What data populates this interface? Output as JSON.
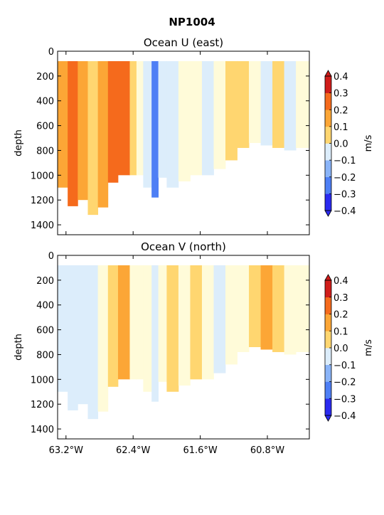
{
  "figure_title": "NP1004",
  "chart_data": [
    {
      "type": "heatmap",
      "title": "Ocean U (east)",
      "xlabel": "",
      "ylabel": "depth",
      "x_ticks": [
        "63.2°W",
        "62.4°W",
        "61.6°W",
        "60.8°W"
      ],
      "x_tick_values": [
        -63.2,
        -62.4,
        -61.6,
        -60.8
      ],
      "xlim": [
        -63.3,
        -60.3
      ],
      "y_ticks": [
        "0",
        "200",
        "400",
        "600",
        "800",
        "1000",
        "1200",
        "1400"
      ],
      "y_tick_values": [
        0,
        200,
        400,
        600,
        800,
        1000,
        1200,
        1400
      ],
      "ylim": [
        1480,
        0
      ],
      "colorbar": {
        "label": "m/s",
        "ticks": [
          "0.4",
          "0.3",
          "0.2",
          "0.1",
          "0.0",
          "−0.1",
          "−0.2",
          "−0.3",
          "−0.4"
        ],
        "levels": [
          -0.4,
          -0.3,
          -0.2,
          -0.1,
          0.0,
          0.1,
          0.2,
          0.3,
          0.4
        ],
        "colors": [
          "#2a2af0",
          "#4e7ff5",
          "#8ab4f8",
          "#dcedfb",
          "#fffbd9",
          "#ffd670",
          "#fca636",
          "#f56a1c",
          "#d01d1a"
        ]
      },
      "columns": [
        {
          "x0": -63.3,
          "x1": -63.18,
          "bottom": 1100,
          "value": 0.28
        },
        {
          "x0": -63.18,
          "x1": -63.06,
          "bottom": 1250,
          "value": 0.34
        },
        {
          "x0": -63.06,
          "x1": -62.94,
          "bottom": 1200,
          "value": 0.25
        },
        {
          "x0": -62.94,
          "x1": -62.82,
          "bottom": 1320,
          "value": 0.18
        },
        {
          "x0": -62.82,
          "x1": -62.7,
          "bottom": 1260,
          "value": 0.22
        },
        {
          "x0": -62.7,
          "x1": -62.58,
          "bottom": 1060,
          "value": 0.34
        },
        {
          "x0": -62.58,
          "x1": -62.44,
          "bottom": 1000,
          "value": 0.36
        },
        {
          "x0": -62.44,
          "x1": -62.36,
          "bottom": 1000,
          "value": 0.15
        },
        {
          "x0": -62.36,
          "x1": -62.28,
          "bottom": 1000,
          "value": 0.05
        },
        {
          "x0": -62.28,
          "x1": -62.18,
          "bottom": 1100,
          "value": -0.08
        },
        {
          "x0": -62.18,
          "x1": -62.1,
          "bottom": 1180,
          "value": -0.24
        },
        {
          "x0": -62.1,
          "x1": -62.0,
          "bottom": 1020,
          "value": -0.05
        },
        {
          "x0": -62.0,
          "x1": -61.86,
          "bottom": 1100,
          "value": -0.05
        },
        {
          "x0": -61.86,
          "x1": -61.72,
          "bottom": 1050,
          "value": 0.04
        },
        {
          "x0": -61.72,
          "x1": -61.58,
          "bottom": 1000,
          "value": 0.03
        },
        {
          "x0": -61.58,
          "x1": -61.44,
          "bottom": 1000,
          "value": -0.06
        },
        {
          "x0": -61.44,
          "x1": -61.3,
          "bottom": 950,
          "value": 0.04
        },
        {
          "x0": -61.3,
          "x1": -61.16,
          "bottom": 880,
          "value": 0.14
        },
        {
          "x0": -61.16,
          "x1": -61.02,
          "bottom": 780,
          "value": 0.12
        },
        {
          "x0": -61.02,
          "x1": -60.88,
          "bottom": 740,
          "value": 0.04
        },
        {
          "x0": -60.88,
          "x1": -60.74,
          "bottom": 760,
          "value": -0.03
        },
        {
          "x0": -60.74,
          "x1": -60.6,
          "bottom": 780,
          "value": 0.13
        },
        {
          "x0": -60.6,
          "x1": -60.46,
          "bottom": 800,
          "value": -0.07
        },
        {
          "x0": -60.46,
          "x1": -60.3,
          "bottom": 780,
          "value": 0.03
        }
      ]
    },
    {
      "type": "heatmap",
      "title": "Ocean V (north)",
      "xlabel": "",
      "ylabel": "depth",
      "x_ticks": [
        "63.2°W",
        "62.4°W",
        "61.6°W",
        "60.8°W"
      ],
      "x_tick_values": [
        -63.2,
        -62.4,
        -61.6,
        -60.8
      ],
      "xlim": [
        -63.3,
        -60.3
      ],
      "y_ticks": [
        "0",
        "200",
        "400",
        "600",
        "800",
        "1000",
        "1200",
        "1400"
      ],
      "y_tick_values": [
        0,
        200,
        400,
        600,
        800,
        1000,
        1200,
        1400
      ],
      "ylim": [
        1480,
        0
      ],
      "colorbar": {
        "label": "m/s",
        "ticks": [
          "0.4",
          "0.3",
          "0.2",
          "0.1",
          "0.0",
          "−0.1",
          "−0.2",
          "−0.3",
          "−0.4"
        ],
        "levels": [
          -0.4,
          -0.3,
          -0.2,
          -0.1,
          0.0,
          0.1,
          0.2,
          0.3,
          0.4
        ],
        "colors": [
          "#2a2af0",
          "#4e7ff5",
          "#8ab4f8",
          "#dcedfb",
          "#fffbd9",
          "#ffd670",
          "#fca636",
          "#f56a1c",
          "#d01d1a"
        ]
      },
      "columns": [
        {
          "x0": -63.3,
          "x1": -63.18,
          "bottom": 1100,
          "value": -0.06
        },
        {
          "x0": -63.18,
          "x1": -63.06,
          "bottom": 1250,
          "value": -0.07
        },
        {
          "x0": -63.06,
          "x1": -62.94,
          "bottom": 1200,
          "value": -0.04
        },
        {
          "x0": -62.94,
          "x1": -62.82,
          "bottom": 1320,
          "value": -0.03
        },
        {
          "x0": -62.82,
          "x1": -62.7,
          "bottom": 1260,
          "value": 0.03
        },
        {
          "x0": -62.7,
          "x1": -62.58,
          "bottom": 1060,
          "value": 0.14
        },
        {
          "x0": -62.58,
          "x1": -62.44,
          "bottom": 1000,
          "value": 0.22
        },
        {
          "x0": -62.44,
          "x1": -62.36,
          "bottom": 1000,
          "value": 0.05
        },
        {
          "x0": -62.36,
          "x1": -62.28,
          "bottom": 1000,
          "value": 0.08
        },
        {
          "x0": -62.28,
          "x1": -62.18,
          "bottom": 1100,
          "value": 0.03
        },
        {
          "x0": -62.18,
          "x1": -62.1,
          "bottom": 1180,
          "value": -0.03
        },
        {
          "x0": -62.1,
          "x1": -62.0,
          "bottom": 1020,
          "value": 0.03
        },
        {
          "x0": -62.0,
          "x1": -61.86,
          "bottom": 1100,
          "value": 0.12
        },
        {
          "x0": -61.86,
          "x1": -61.72,
          "bottom": 1050,
          "value": 0.04
        },
        {
          "x0": -61.72,
          "x1": -61.58,
          "bottom": 1000,
          "value": 0.13
        },
        {
          "x0": -61.58,
          "x1": -61.44,
          "bottom": 1000,
          "value": 0.05
        },
        {
          "x0": -61.44,
          "x1": -61.3,
          "bottom": 950,
          "value": -0.04
        },
        {
          "x0": -61.3,
          "x1": -61.16,
          "bottom": 880,
          "value": 0.03
        },
        {
          "x0": -61.16,
          "x1": -61.02,
          "bottom": 780,
          "value": 0.05
        },
        {
          "x0": -61.02,
          "x1": -60.88,
          "bottom": 740,
          "value": 0.12
        },
        {
          "x0": -60.88,
          "x1": -60.74,
          "bottom": 760,
          "value": 0.24
        },
        {
          "x0": -60.74,
          "x1": -60.6,
          "bottom": 780,
          "value": 0.15
        },
        {
          "x0": -60.6,
          "x1": -60.46,
          "bottom": 800,
          "value": 0.04
        },
        {
          "x0": -60.46,
          "x1": -60.3,
          "bottom": 780,
          "value": 0.06
        }
      ]
    }
  ]
}
